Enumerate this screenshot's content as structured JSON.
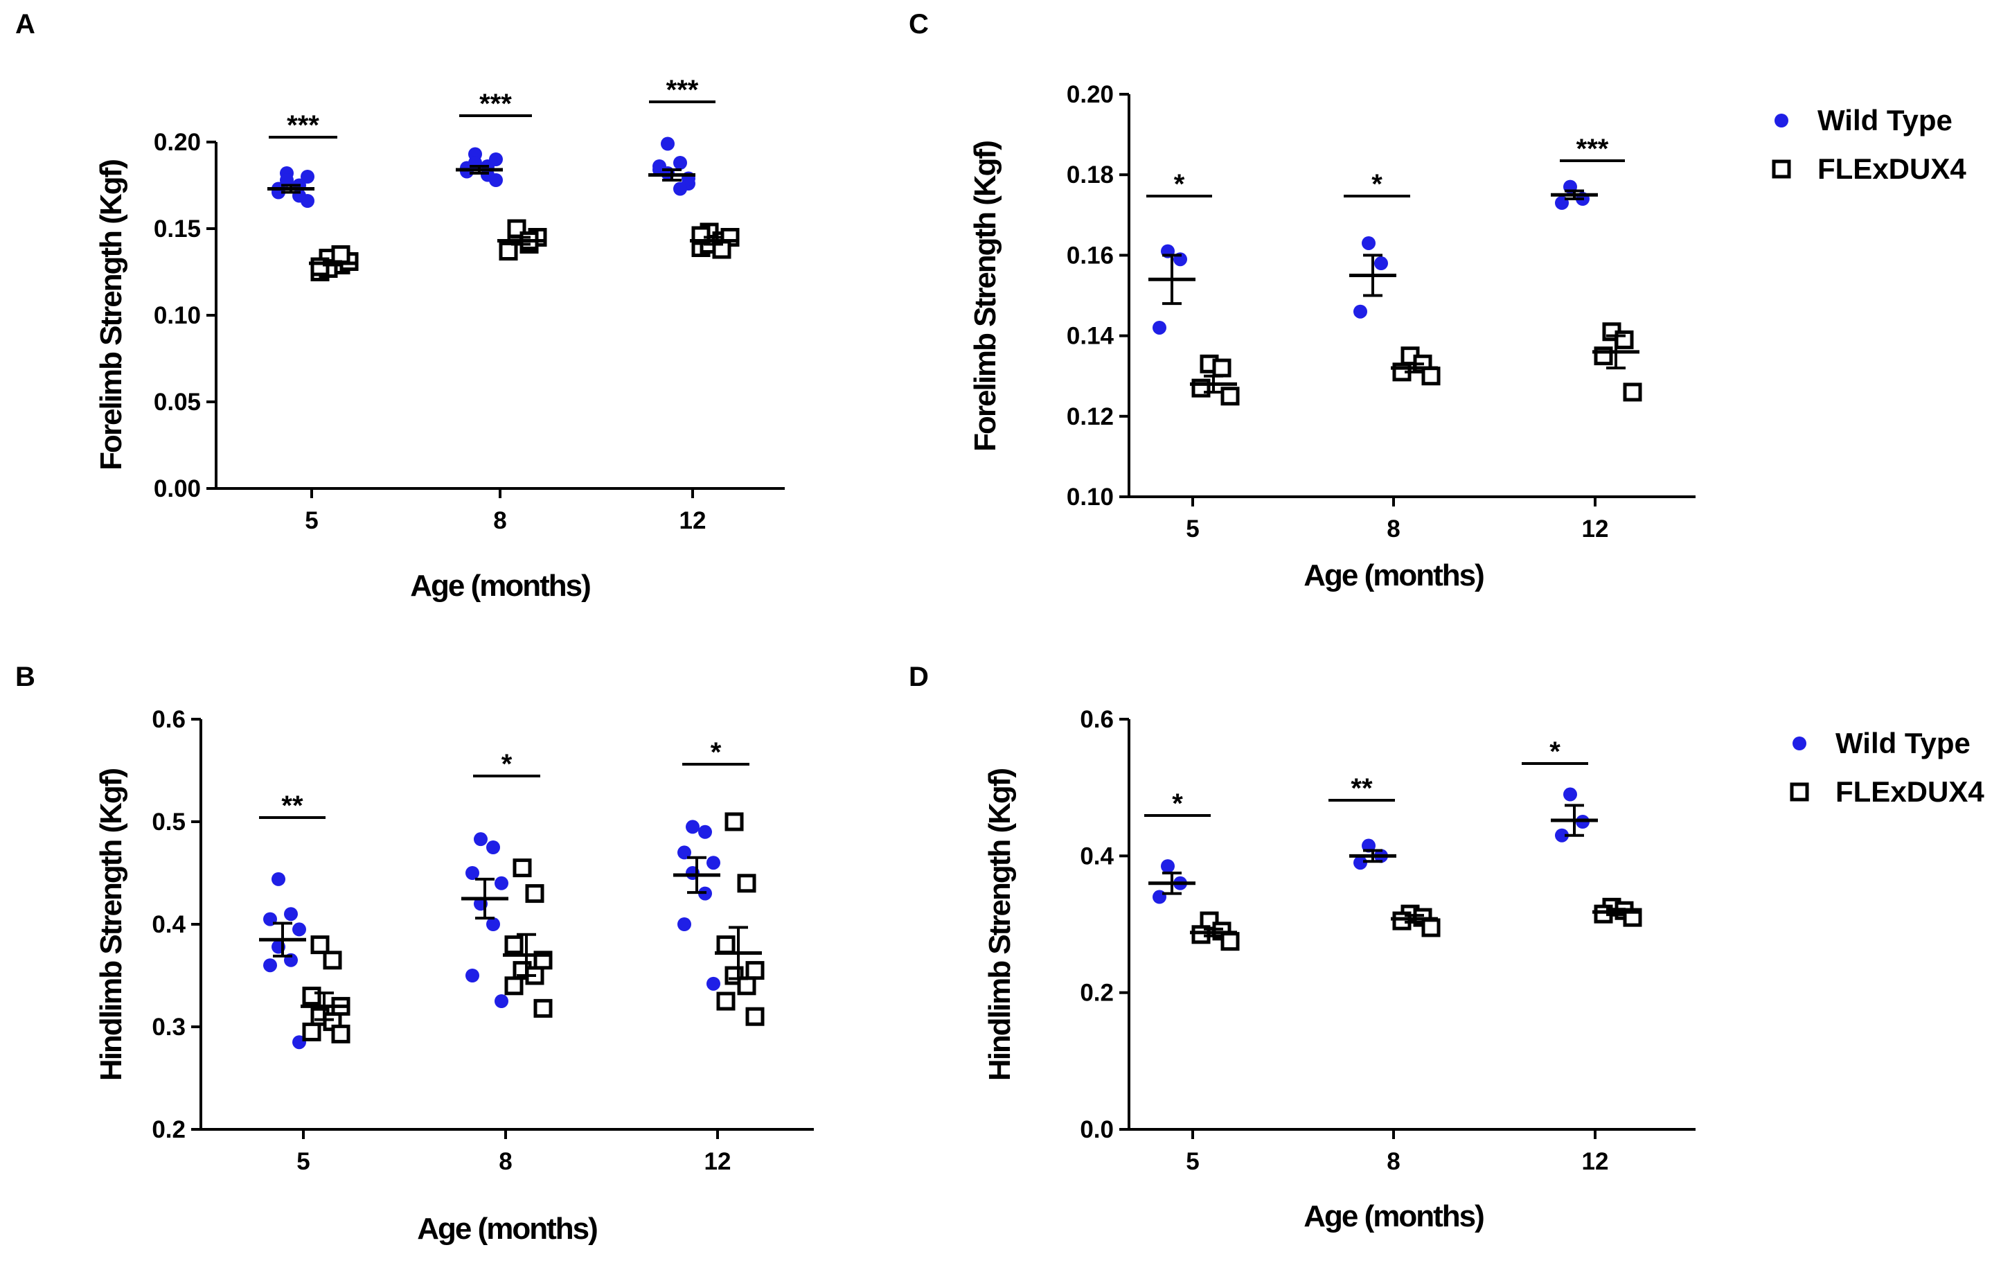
{
  "figure": {
    "colors": {
      "wild_type": "#1f1fe6",
      "flexdux4": "#000000",
      "axis": "#000000"
    }
  },
  "chart_data": [
    {
      "panel": "A",
      "type": "scatter",
      "title": "",
      "xlabel": "Age (months)",
      "ylabel": "Forelimb Strength (Kgf)",
      "categories": [
        "5",
        "8",
        "12"
      ],
      "ylim": [
        0,
        0.2
      ],
      "yticks": [
        "0.00",
        "0.05",
        "0.10",
        "0.15",
        "0.20"
      ],
      "series": [
        {
          "name": "Wild Type",
          "marker": "filled-circle",
          "points": [
            [
              0.182,
              0.175,
              0.171,
              0.166,
              0.178,
              0.169,
              0.173,
              0.18
            ],
            [
              0.193,
              0.186,
              0.183,
              0.178,
              0.188,
              0.181,
              0.185,
              0.19
            ],
            [
              0.199,
              0.188,
              0.184,
              0.176,
              0.182,
              0.173,
              0.186,
              0.179
            ]
          ],
          "means": [
            0.173,
            0.184,
            0.181
          ],
          "sem": [
            0.002,
            0.002,
            0.003
          ]
        },
        {
          "name": "FLExDUX4",
          "marker": "open-square",
          "points": [
            [
              0.133,
              0.129,
              0.125,
              0.131,
              0.127,
              0.135,
              0.128
            ],
            [
              0.147,
              0.141,
              0.138,
              0.145,
              0.15,
              0.143,
              0.137
            ],
            [
              0.148,
              0.143,
              0.139,
              0.145,
              0.141,
              0.138,
              0.146
            ]
          ],
          "means": [
            0.13,
            0.143,
            0.143
          ],
          "sem": [
            0.001,
            0.002,
            0.002
          ]
        }
      ],
      "annotations": [
        "***",
        "***",
        "***"
      ],
      "legend": null
    },
    {
      "panel": "B",
      "type": "scatter",
      "title": "",
      "xlabel": "Age (months)",
      "ylabel": "Hindlimb Strength (Kgf)",
      "categories": [
        "5",
        "8",
        "12"
      ],
      "ylim": [
        0.2,
        0.6
      ],
      "yticks": [
        "0.2",
        "0.3",
        "0.4",
        "0.5",
        "0.6"
      ],
      "series": [
        {
          "name": "Wild Type",
          "marker": "filled-circle",
          "points": [
            [
              0.444,
              0.41,
              0.405,
              0.395,
              0.378,
              0.365,
              0.36,
              0.285
            ],
            [
              0.483,
              0.475,
              0.45,
              0.44,
              0.42,
              0.4,
              0.35,
              0.325
            ],
            [
              0.495,
              0.49,
              0.47,
              0.46,
              0.45,
              0.43,
              0.4,
              0.342
            ]
          ],
          "means": [
            0.385,
            0.425,
            0.448
          ],
          "sem": [
            0.016,
            0.019,
            0.017
          ]
        },
        {
          "name": "FLExDUX4",
          "marker": "open-square",
          "points": [
            [
              0.38,
              0.365,
              0.33,
              0.32,
              0.31,
              0.305,
              0.295,
              0.293
            ],
            [
              0.455,
              0.43,
              0.38,
              0.365,
              0.355,
              0.35,
              0.34,
              0.318
            ],
            [
              0.5,
              0.44,
              0.38,
              0.355,
              0.35,
              0.34,
              0.325,
              0.31
            ]
          ],
          "means": [
            0.32,
            0.37,
            0.372
          ],
          "sem": [
            0.013,
            0.02,
            0.025
          ]
        }
      ],
      "annotations": [
        "**",
        "*",
        "*"
      ],
      "legend": null
    },
    {
      "panel": "C",
      "type": "scatter",
      "title": "",
      "xlabel": "Age (months)",
      "ylabel": "Forelimb Strength (Kgf)",
      "categories": [
        "5",
        "8",
        "12"
      ],
      "ylim": [
        0.1,
        0.2
      ],
      "yticks": [
        "0.10",
        "0.12",
        "0.14",
        "0.16",
        "0.18",
        "0.20"
      ],
      "series": [
        {
          "name": "Wild Type",
          "marker": "filled-circle",
          "points": [
            [
              0.161,
              0.159,
              0.142
            ],
            [
              0.163,
              0.158,
              0.146
            ],
            [
              0.177,
              0.174,
              0.173
            ]
          ],
          "means": [
            0.154,
            0.155,
            0.175
          ],
          "sem": [
            0.006,
            0.005,
            0.001
          ]
        },
        {
          "name": "FLExDUX4",
          "marker": "open-square",
          "points": [
            [
              0.133,
              0.132,
              0.127,
              0.125
            ],
            [
              0.135,
              0.133,
              0.131,
              0.13
            ],
            [
              0.141,
              0.139,
              0.135,
              0.126
            ]
          ],
          "means": [
            0.128,
            0.132,
            0.136
          ],
          "sem": [
            0.002,
            0.001,
            0.004
          ]
        }
      ],
      "annotations": [
        "*",
        "*",
        "***"
      ],
      "legend": {
        "entries": [
          "Wild Type",
          "FLExDUX4"
        ],
        "placement": "right"
      }
    },
    {
      "panel": "D",
      "type": "scatter",
      "title": "",
      "xlabel": "Age (months)",
      "ylabel": "Hindlimb Strength (Kgf)",
      "categories": [
        "5",
        "8",
        "12"
      ],
      "ylim": [
        0,
        0.6
      ],
      "yticks": [
        "0.0",
        "0.2",
        "0.4",
        "0.6"
      ],
      "series": [
        {
          "name": "Wild Type",
          "marker": "filled-circle",
          "points": [
            [
              0.385,
              0.36,
              0.34
            ],
            [
              0.415,
              0.4,
              0.39
            ],
            [
              0.49,
              0.45,
              0.43
            ]
          ],
          "means": [
            0.36,
            0.4,
            0.452
          ],
          "sem": [
            0.015,
            0.008,
            0.022
          ]
        },
        {
          "name": "FLExDUX4",
          "marker": "open-square",
          "points": [
            [
              0.305,
              0.29,
              0.285,
              0.275
            ],
            [
              0.315,
              0.31,
              0.305,
              0.295
            ],
            [
              0.325,
              0.32,
              0.315,
              0.31
            ]
          ],
          "means": [
            0.288,
            0.308,
            0.318
          ],
          "sem": [
            0.005,
            0.005,
            0.004
          ]
        }
      ],
      "annotations": [
        "*",
        "**",
        "*"
      ],
      "legend": {
        "entries": [
          "Wild Type",
          "FLExDUX4"
        ],
        "placement": "right"
      }
    }
  ]
}
